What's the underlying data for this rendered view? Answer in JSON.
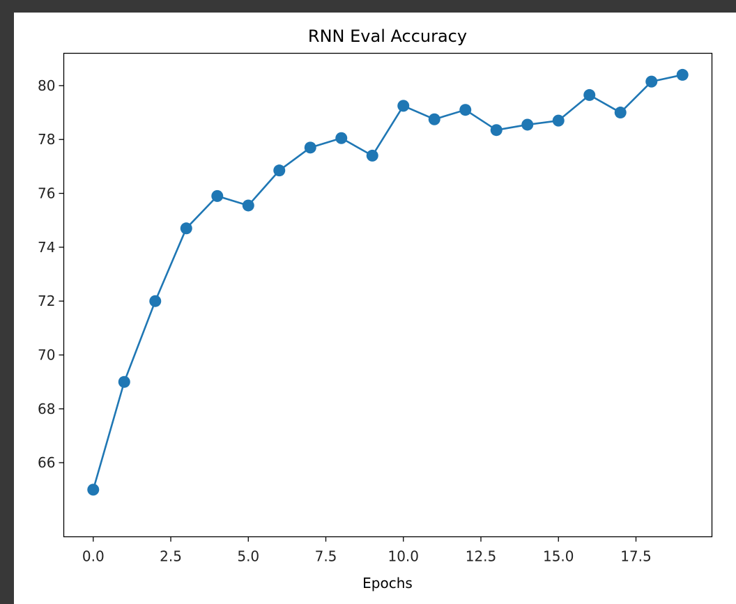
{
  "chart_data": {
    "type": "line",
    "title": "RNN Eval Accuracy",
    "xlabel": "Epochs",
    "ylabel": "",
    "x": [
      0,
      1,
      2,
      3,
      4,
      5,
      6,
      7,
      8,
      9,
      10,
      11,
      12,
      13,
      14,
      15,
      16,
      17,
      18,
      19
    ],
    "series": [
      {
        "name": "",
        "color": "#1f77b4",
        "marker": "circle",
        "values": [
          65.0,
          69.0,
          72.0,
          74.7,
          75.9,
          75.55,
          76.85,
          77.7,
          78.05,
          77.4,
          79.25,
          78.75,
          79.1,
          78.35,
          78.55,
          78.7,
          79.65,
          79.0,
          80.15,
          80.4
        ]
      }
    ],
    "xlim": [
      -0.95,
      19.95
    ],
    "ylim": [
      63.25,
      81.2
    ],
    "xticks": [
      0,
      2.5,
      5,
      7.5,
      10,
      12.5,
      15,
      17.5
    ],
    "xtick_labels": [
      "0.0",
      "2.5",
      "5.0",
      "7.5",
      "10.0",
      "12.5",
      "15.0",
      "17.5"
    ],
    "yticks": [
      66,
      68,
      70,
      72,
      74,
      76,
      78,
      80
    ],
    "ytick_labels": [
      "66",
      "68",
      "70",
      "72",
      "74",
      "76",
      "78",
      "80"
    ],
    "grid": false,
    "legend": "none"
  }
}
